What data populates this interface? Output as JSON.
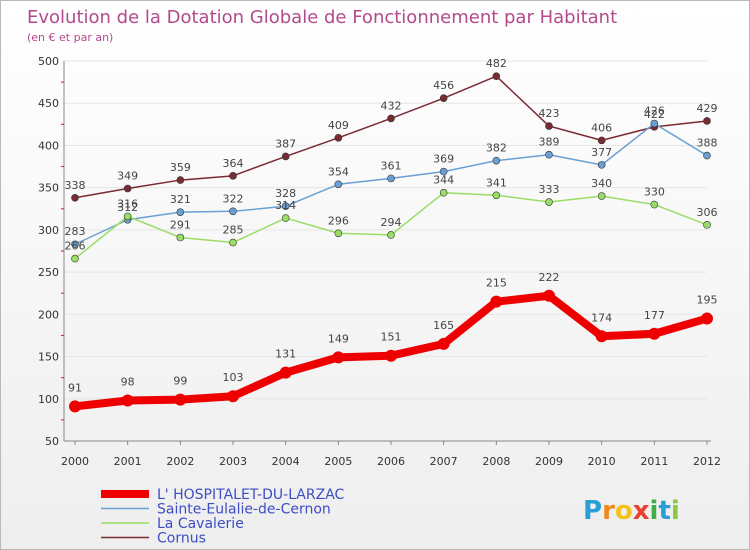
{
  "chart_data": {
    "type": "line",
    "title": "Evolution de la Dotation Globale de Fonctionnement par Habitant",
    "subtitle": "(en € et par an)",
    "categories": [
      "2000",
      "2001",
      "2002",
      "2003",
      "2004",
      "2005",
      "2006",
      "2007",
      "2008",
      "2009",
      "2010",
      "2011",
      "2012"
    ],
    "ylim": [
      50,
      500
    ],
    "yticks": [
      50,
      100,
      150,
      200,
      250,
      300,
      350,
      400,
      450,
      500
    ],
    "legend_position": "bottom-left",
    "series": [
      {
        "name": "L' HOSPITALET-DU-LARZAC",
        "color": "#ee0000",
        "values": [
          91,
          98,
          99,
          103,
          131,
          149,
          151,
          165,
          215,
          222,
          174,
          177,
          195
        ]
      },
      {
        "name": "Sainte-Eulalie-de-Cernon",
        "color": "#6a9fd2",
        "values": [
          283,
          312,
          321,
          322,
          328,
          354,
          361,
          369,
          382,
          389,
          377,
          426,
          388
        ]
      },
      {
        "name": "La Cavalerie",
        "color": "#99dd66",
        "values": [
          266,
          316,
          291,
          285,
          314,
          296,
          294,
          344,
          341,
          333,
          340,
          330,
          306
        ]
      },
      {
        "name": "Cornus",
        "color": "#7a2a32",
        "values": [
          338,
          349,
          359,
          364,
          387,
          409,
          432,
          456,
          482,
          423,
          406,
          422,
          429
        ]
      }
    ]
  },
  "brand": {
    "letters": [
      "P",
      "r",
      "o",
      "x",
      "i",
      "t",
      "i"
    ],
    "colors": [
      "#2a9fd6",
      "#f08a1c",
      "#f5c21b",
      "#e8412e",
      "#3fae49",
      "#2a9fd6",
      "#8dc63f"
    ]
  }
}
